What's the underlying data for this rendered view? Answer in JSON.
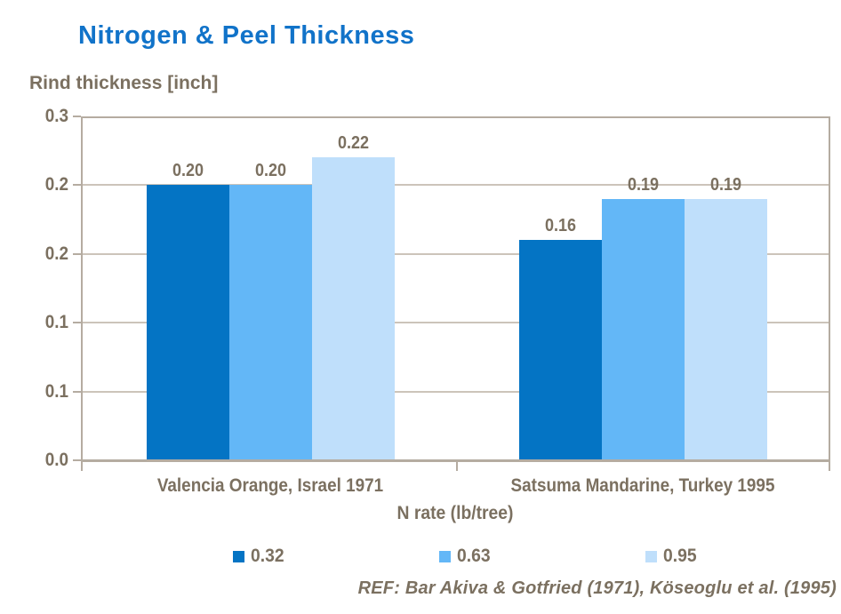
{
  "colors": {
    "title": "#1173C9",
    "text": "#7B7060",
    "grid": "#CCC4BA",
    "axis": "#B5ACA1",
    "background": "#FFFFFF"
  },
  "chart_data": {
    "type": "bar",
    "title": "Nitrogen & Peel Thickness",
    "value_axis_label": "Rind thickness [inch]",
    "xlabel": "N rate (lb/tree)",
    "categories": [
      "Valencia Orange, Israel 1971",
      "Satsuma Mandarine, Turkey 1995"
    ],
    "series": [
      {
        "name": "0.32",
        "color": "#0474C4",
        "values": [
          0.2,
          0.16
        ],
        "data_labels": [
          "0.20",
          "0.16"
        ]
      },
      {
        "name": "0.63",
        "color": "#63B7F7",
        "values": [
          0.2,
          0.19
        ],
        "data_labels": [
          "0.20",
          "0.19"
        ]
      },
      {
        "name": "0.95",
        "color": "#BFDFFB",
        "values": [
          0.22,
          0.19
        ],
        "data_labels": [
          "0.22",
          "0.19"
        ]
      }
    ],
    "ylim": [
      0,
      0.25
    ],
    "yticks": [
      {
        "value": 0.25,
        "label": "0.3"
      },
      {
        "value": 0.2,
        "label": "0.2"
      },
      {
        "value": 0.15,
        "label": "0.2"
      },
      {
        "value": 0.1,
        "label": "0.1"
      },
      {
        "value": 0.05,
        "label": "0.1"
      },
      {
        "value": 0.0,
        "label": "0.0"
      }
    ],
    "grid": true,
    "legend_position": "bottom",
    "footer": "REF: Bar Akiva & Gotfried (1971), Köseoglu et al. (1995)"
  }
}
